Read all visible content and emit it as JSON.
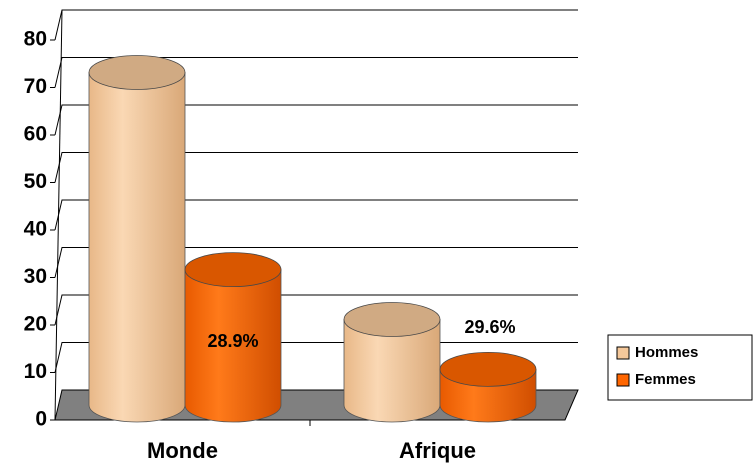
{
  "chart_data": {
    "type": "bar",
    "categories": [
      "Monde",
      "Afrique"
    ],
    "series": [
      {
        "name": "Hommes",
        "color": "#f5c89a",
        "values": [
          70,
          18
        ]
      },
      {
        "name": "Femmes",
        "color": "#ff6600",
        "values": [
          28.5,
          7.5
        ]
      }
    ],
    "annotations": [
      "28.9%",
      "29.6%"
    ],
    "ylim": [
      0,
      80
    ],
    "yticks": [
      0,
      10,
      20,
      30,
      40,
      50,
      60,
      70,
      80
    ],
    "grid": true,
    "legend": "right"
  }
}
